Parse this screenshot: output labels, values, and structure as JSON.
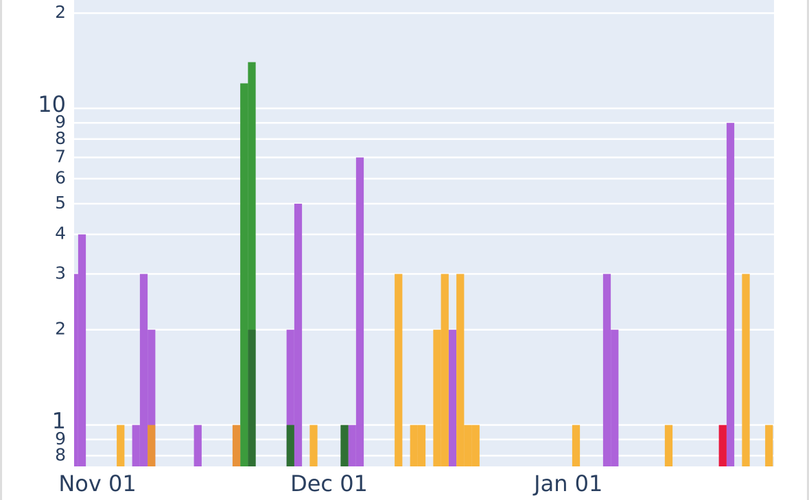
{
  "chart_data": {
    "type": "bar",
    "log_y": true,
    "grid": true,
    "ylim": [
      0.74,
      22
    ],
    "yticks": [
      {
        "value": 20,
        "label": "2"
      },
      10,
      9,
      8,
      7,
      6,
      5,
      4,
      3,
      2,
      1,
      {
        "value": 0.9,
        "label": "9"
      },
      {
        "value": 0.8,
        "label": "8"
      }
    ],
    "categories": [
      null,
      null,
      null,
      "Nov 01",
      null,
      null,
      null,
      null,
      null,
      null,
      null,
      null,
      null,
      null,
      null,
      null,
      null,
      null,
      null,
      null,
      null,
      null,
      null,
      null,
      null,
      null,
      null,
      null,
      null,
      null,
      null,
      null,
      null,
      "Dec 01",
      null,
      null,
      null,
      null,
      null,
      null,
      null,
      null,
      null,
      null,
      null,
      null,
      null,
      null,
      null,
      null,
      null,
      null,
      null,
      null,
      null,
      null,
      null,
      null,
      null,
      null,
      null,
      null,
      null,
      null,
      "Jan 01",
      null,
      null,
      null,
      null,
      null,
      null,
      null,
      null,
      null,
      null,
      null,
      null,
      null,
      null,
      null,
      null,
      null,
      null,
      null,
      null,
      null,
      null,
      null,
      null,
      null,
      null
    ],
    "series": [
      {
        "color": "#ad63da",
        "values": [
          3,
          4,
          null,
          null,
          null,
          null,
          null,
          null,
          1,
          3,
          2,
          null,
          null,
          null,
          null,
          null,
          1,
          null,
          null,
          null,
          null,
          null,
          null,
          null,
          null,
          null,
          null,
          null,
          2,
          5,
          null,
          null,
          null,
          null,
          null,
          null,
          1,
          7,
          null,
          null,
          null,
          null,
          null,
          null,
          null,
          null,
          null,
          null,
          null,
          2,
          null,
          null,
          null,
          null,
          null,
          null,
          null,
          null,
          null,
          null,
          null,
          null,
          null,
          null,
          null,
          null,
          null,
          null,
          null,
          3,
          2,
          null,
          null,
          null,
          null,
          null,
          null,
          null,
          null,
          null,
          null,
          null,
          null,
          null,
          null,
          9,
          null,
          null,
          null,
          null,
          null
        ]
      },
      {
        "color": "#f7b43c",
        "values": [
          null,
          null,
          null,
          null,
          null,
          null,
          1,
          null,
          null,
          null,
          null,
          null,
          null,
          null,
          null,
          null,
          null,
          null,
          null,
          null,
          null,
          null,
          null,
          null,
          null,
          null,
          null,
          null,
          null,
          null,
          null,
          1,
          null,
          null,
          null,
          null,
          null,
          null,
          null,
          null,
          null,
          null,
          3,
          null,
          1,
          1,
          null,
          2,
          3,
          null,
          3,
          1,
          1,
          null,
          null,
          null,
          null,
          null,
          null,
          null,
          null,
          null,
          null,
          null,
          null,
          1,
          null,
          null,
          null,
          null,
          null,
          null,
          null,
          null,
          null,
          null,
          null,
          1,
          null,
          null,
          null,
          null,
          null,
          null,
          null,
          null,
          null,
          3,
          null,
          null,
          1
        ]
      },
      {
        "color": "#3c9b3c",
        "values": [
          null,
          null,
          null,
          null,
          null,
          null,
          null,
          null,
          null,
          null,
          null,
          null,
          null,
          null,
          null,
          null,
          null,
          null,
          null,
          null,
          null,
          null,
          12,
          14,
          null,
          null,
          null,
          null,
          null,
          null,
          null,
          null,
          null,
          null,
          null,
          null,
          null,
          null,
          null,
          null,
          null,
          null,
          null,
          null,
          null,
          null,
          null,
          null,
          null,
          null,
          null,
          null,
          null,
          null,
          null,
          null,
          null,
          null,
          null,
          null,
          null,
          null,
          null,
          null,
          null,
          null,
          null,
          null,
          null,
          null,
          null,
          null,
          null,
          null,
          null,
          null,
          null,
          null,
          null,
          null,
          null,
          null,
          null,
          null,
          null,
          null,
          null,
          null,
          null,
          null,
          null
        ]
      },
      {
        "color": "#2f7034",
        "values": [
          null,
          null,
          null,
          null,
          null,
          null,
          null,
          null,
          null,
          null,
          null,
          null,
          null,
          null,
          null,
          null,
          null,
          null,
          null,
          null,
          null,
          null,
          null,
          2,
          null,
          null,
          null,
          null,
          1,
          null,
          null,
          null,
          null,
          null,
          null,
          1,
          null,
          null,
          null,
          null,
          null,
          null,
          null,
          null,
          null,
          null,
          null,
          null,
          null,
          null,
          null,
          null,
          null,
          null,
          null,
          null,
          null,
          null,
          null,
          null,
          null,
          null,
          null,
          null,
          null,
          null,
          null,
          null,
          null,
          null,
          null,
          null,
          null,
          null,
          null,
          null,
          null,
          null,
          null,
          null,
          null,
          null,
          null,
          null,
          null,
          null,
          null,
          null,
          null,
          null,
          null
        ]
      },
      {
        "color": "#e8923a",
        "values": [
          null,
          null,
          null,
          null,
          null,
          null,
          null,
          null,
          null,
          null,
          1,
          null,
          null,
          null,
          null,
          null,
          null,
          null,
          null,
          null,
          null,
          1,
          null,
          null,
          null,
          null,
          null,
          null,
          null,
          null,
          null,
          null,
          null,
          null,
          null,
          null,
          null,
          null,
          null,
          null,
          null,
          null,
          null,
          null,
          null,
          null,
          null,
          null,
          null,
          null,
          null,
          null,
          null,
          null,
          null,
          null,
          null,
          null,
          null,
          null,
          null,
          null,
          null,
          null,
          null,
          null,
          null,
          null,
          null,
          null,
          null,
          null,
          null,
          null,
          null,
          null,
          null,
          null,
          null,
          null,
          null,
          null,
          null,
          null,
          null,
          null,
          null,
          null,
          null,
          null,
          null
        ]
      },
      {
        "color": "#e8193e",
        "values": [
          null,
          null,
          null,
          null,
          null,
          null,
          null,
          null,
          null,
          null,
          null,
          null,
          null,
          null,
          null,
          null,
          null,
          null,
          null,
          null,
          null,
          null,
          null,
          null,
          null,
          null,
          null,
          null,
          null,
          null,
          null,
          null,
          null,
          null,
          null,
          null,
          null,
          null,
          null,
          null,
          null,
          null,
          null,
          null,
          null,
          null,
          null,
          null,
          null,
          null,
          null,
          null,
          null,
          null,
          null,
          null,
          null,
          null,
          null,
          null,
          null,
          null,
          null,
          null,
          null,
          null,
          null,
          null,
          null,
          null,
          null,
          null,
          null,
          null,
          null,
          null,
          null,
          null,
          null,
          null,
          null,
          null,
          null,
          null,
          1,
          null,
          null,
          null,
          null,
          null,
          null
        ]
      }
    ]
  }
}
